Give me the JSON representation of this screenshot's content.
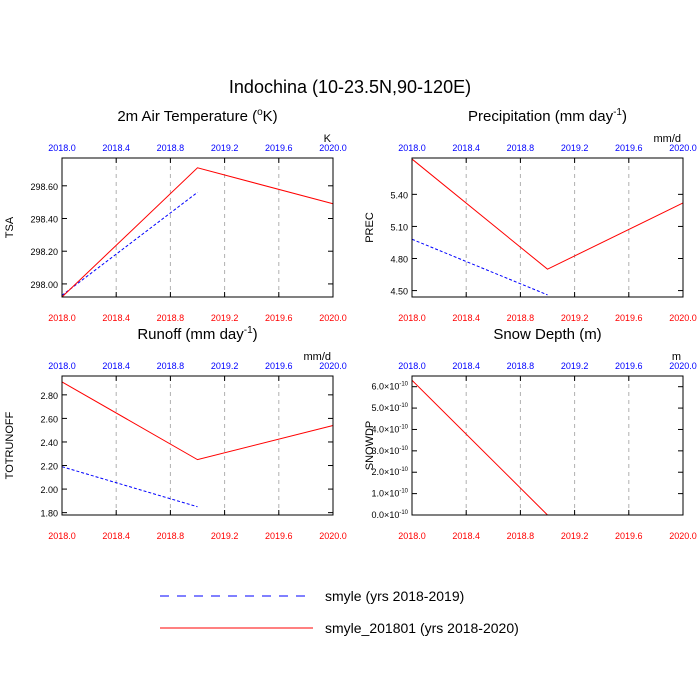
{
  "figure": {
    "title": "Indochina (10-23.5N,90-120E)"
  },
  "legend": {
    "entries": [
      {
        "label": "smyle (yrs 2018-2019)",
        "color": "#0000ff",
        "dash": "dash"
      },
      {
        "label": "smyle_201801 (yrs 2018-2020)",
        "color": "#ff0000",
        "dash": "solid"
      }
    ]
  },
  "chart_data": [
    {
      "type": "line",
      "title": "2m Air Temperature (°K)",
      "title_parts": {
        "pre": "2m Air Temperature (",
        "sup": "o",
        "post": "K)"
      },
      "unit": "K",
      "ylabel": "TSA",
      "xlim": [
        2018.0,
        2020.0
      ],
      "ylim": [
        297.92,
        298.77
      ],
      "x_ticks": [
        2018.0,
        2018.4,
        2018.8,
        2019.2,
        2019.6,
        2020.0
      ],
      "x_tick_labels": [
        "2018.0",
        "2018.4",
        "2018.8",
        "2019.2",
        "2019.6",
        "2020.0"
      ],
      "y_ticks": [
        298.0,
        298.2,
        298.4,
        298.6
      ],
      "y_tick_labels": [
        "298.00",
        "298.20",
        "298.40",
        "298.60"
      ],
      "grid": "vertical-dashed",
      "series": [
        {
          "name": "smyle (yrs 2018-2019)",
          "color": "#0000ff",
          "dash": "dash",
          "x": [
            2018.0,
            2019.0
          ],
          "y": [
            297.93,
            298.56
          ]
        },
        {
          "name": "smyle_201801 (yrs 2018-2020)",
          "color": "#ff0000",
          "dash": "solid",
          "x": [
            2018.0,
            2019.0,
            2020.0
          ],
          "y": [
            297.92,
            298.71,
            298.49
          ]
        }
      ]
    },
    {
      "type": "line",
      "title": "Precipitation (mm day-1)",
      "title_parts": {
        "pre": "Precipitation (mm day",
        "sup": "-1",
        "post": ")"
      },
      "unit": "mm/d",
      "ylabel": "PREC",
      "xlim": [
        2018.0,
        2020.0
      ],
      "ylim": [
        4.44,
        5.74
      ],
      "x_ticks": [
        2018.0,
        2018.4,
        2018.8,
        2019.2,
        2019.6,
        2020.0
      ],
      "x_tick_labels": [
        "2018.0",
        "2018.4",
        "2018.8",
        "2019.2",
        "2019.6",
        "2020.0"
      ],
      "y_ticks": [
        4.5,
        4.8,
        5.1,
        5.4
      ],
      "y_tick_labels": [
        "4.50",
        "4.80",
        "5.10",
        "5.40"
      ],
      "grid": "vertical-dashed",
      "series": [
        {
          "name": "smyle (yrs 2018-2019)",
          "color": "#0000ff",
          "dash": "dash",
          "x": [
            2018.0,
            2019.0
          ],
          "y": [
            4.98,
            4.46
          ]
        },
        {
          "name": "smyle_201801 (yrs 2018-2020)",
          "color": "#ff0000",
          "dash": "solid",
          "x": [
            2018.0,
            2019.0,
            2020.0
          ],
          "y": [
            5.73,
            4.7,
            5.32
          ]
        }
      ]
    },
    {
      "type": "line",
      "title": "Runoff (mm day-1)",
      "title_parts": {
        "pre": "Runoff (mm day",
        "sup": "-1",
        "post": ")"
      },
      "unit": "mm/d",
      "ylabel": "TOTRUNOFF",
      "xlim": [
        2018.0,
        2020.0
      ],
      "ylim": [
        1.78,
        2.96
      ],
      "x_ticks": [
        2018.0,
        2018.4,
        2018.8,
        2019.2,
        2019.6,
        2020.0
      ],
      "x_tick_labels": [
        "2018.0",
        "2018.4",
        "2018.8",
        "2019.2",
        "2019.6",
        "2020.0"
      ],
      "y_ticks": [
        1.8,
        2.0,
        2.2,
        2.4,
        2.6,
        2.8
      ],
      "y_tick_labels": [
        "1.80",
        "2.00",
        "2.20",
        "2.40",
        "2.60",
        "2.80"
      ],
      "grid": "vertical-dashed",
      "series": [
        {
          "name": "smyle (yrs 2018-2019)",
          "color": "#0000ff",
          "dash": "dash",
          "x": [
            2018.0,
            2019.0
          ],
          "y": [
            2.19,
            1.85
          ]
        },
        {
          "name": "smyle_201801 (yrs 2018-2020)",
          "color": "#ff0000",
          "dash": "solid",
          "x": [
            2018.0,
            2019.0,
            2020.0
          ],
          "y": [
            2.91,
            2.25,
            2.54
          ]
        }
      ]
    },
    {
      "type": "line",
      "title": "Snow Depth (m)",
      "title_parts": {
        "pre": "Snow Depth (m)",
        "sup": "",
        "post": ""
      },
      "unit": "m",
      "ylabel": "SNOWDP",
      "xlim": [
        2018.0,
        2020.0
      ],
      "ylim": [
        0.0,
        6.5e-10
      ],
      "x_ticks": [
        2018.0,
        2018.4,
        2018.8,
        2019.2,
        2019.6,
        2020.0
      ],
      "x_tick_labels": [
        "2018.0",
        "2018.4",
        "2018.8",
        "2019.2",
        "2019.6",
        "2020.0"
      ],
      "y_ticks": [
        0.0,
        1e-10,
        2e-10,
        3e-10,
        4e-10,
        5e-10,
        6e-10
      ],
      "y_tick_labels": [
        "0.0×10-10",
        "1.0×10-10",
        "2.0×10-10",
        "3.0×10-10",
        "4.0×10-10",
        "5.0×10-10",
        "6.0×10-10"
      ],
      "y_tick_label_parts": [
        {
          "mant": "0.0×10",
          "exp": "-10"
        },
        {
          "mant": "1.0×10",
          "exp": "-10"
        },
        {
          "mant": "2.0×10",
          "exp": "-10"
        },
        {
          "mant": "3.0×10",
          "exp": "-10"
        },
        {
          "mant": "4.0×10",
          "exp": "-10"
        },
        {
          "mant": "5.0×10",
          "exp": "-10"
        },
        {
          "mant": "6.0×10",
          "exp": "-10"
        }
      ],
      "grid": "vertical-dashed",
      "series": [
        {
          "name": "smyle (yrs 2018-2019)",
          "color": "#0000ff",
          "dash": "dash",
          "x": [
            2018.0,
            2019.0
          ],
          "y": [
            0.0,
            0.0
          ]
        },
        {
          "name": "smyle_201801 (yrs 2018-2020)",
          "color": "#ff0000",
          "dash": "solid",
          "x": [
            2018.0,
            2019.0,
            2020.0
          ],
          "y": [
            6.3e-10,
            0.0,
            0.0
          ]
        }
      ]
    }
  ]
}
